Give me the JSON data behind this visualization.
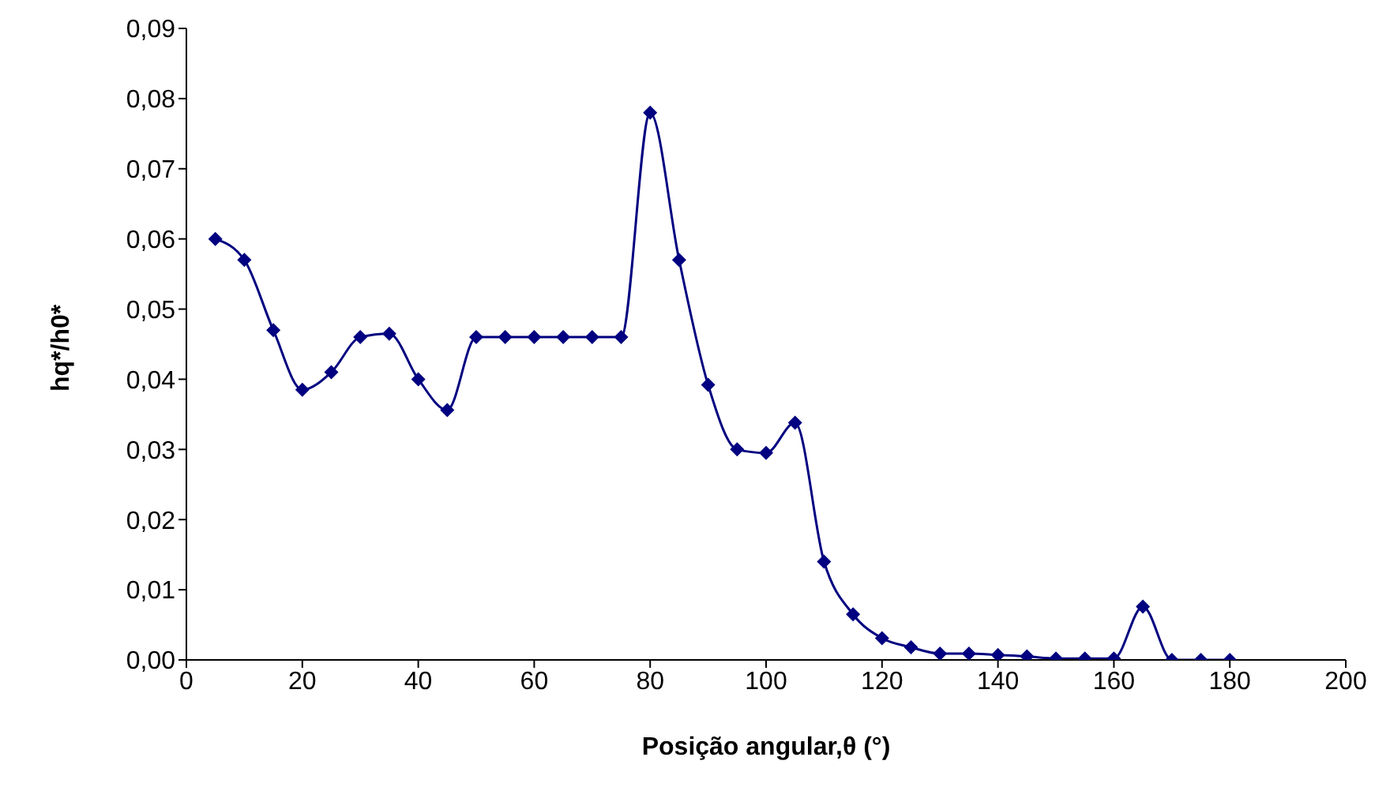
{
  "chart_data": {
    "type": "line",
    "xlabel": "Posição angular,θ (°)",
    "ylabel": "hq*/h0*",
    "x": [
      5,
      10,
      15,
      20,
      25,
      30,
      35,
      40,
      45,
      50,
      55,
      60,
      65,
      70,
      75,
      80,
      85,
      90,
      95,
      100,
      105,
      110,
      115,
      120,
      125,
      130,
      135,
      140,
      145,
      150,
      155,
      160,
      165,
      170,
      175,
      180
    ],
    "series": [
      {
        "color": "#000080",
        "values": [
          0.06,
          0.057,
          0.047,
          0.0385,
          0.041,
          0.046,
          0.0465,
          0.04,
          0.0356,
          0.046,
          0.046,
          0.046,
          0.046,
          0.046,
          0.046,
          0.078,
          0.057,
          0.0392,
          0.03,
          0.0295,
          0.0338,
          0.014,
          0.0065,
          0.0031,
          0.0018,
          0.0009,
          0.0009,
          0.0007,
          0.0005,
          0.0002,
          0.0002,
          0.0002,
          0.0076,
          0,
          0,
          0
        ]
      }
    ],
    "xlim": [
      0,
      200
    ],
    "xticks": [
      0,
      20,
      40,
      60,
      80,
      100,
      120,
      140,
      160,
      180,
      200
    ],
    "ylim": [
      0,
      0.09
    ],
    "yticks": [
      {
        "value": 0,
        "label": "0,00"
      },
      {
        "value": 0.01,
        "label": "0,01"
      },
      {
        "value": 0.02,
        "label": "0,02"
      },
      {
        "value": 0.03,
        "label": "0,03"
      },
      {
        "value": 0.04,
        "label": "0,04"
      },
      {
        "value": 0.05,
        "label": "0,05"
      },
      {
        "value": 0.06,
        "label": "0,06"
      },
      {
        "value": 0.07,
        "label": "0,07"
      },
      {
        "value": 0.08,
        "label": "0,08"
      },
      {
        "value": 0.09,
        "label": "0,09"
      }
    ],
    "marker": "diamond",
    "grid": false,
    "legend": false
  }
}
